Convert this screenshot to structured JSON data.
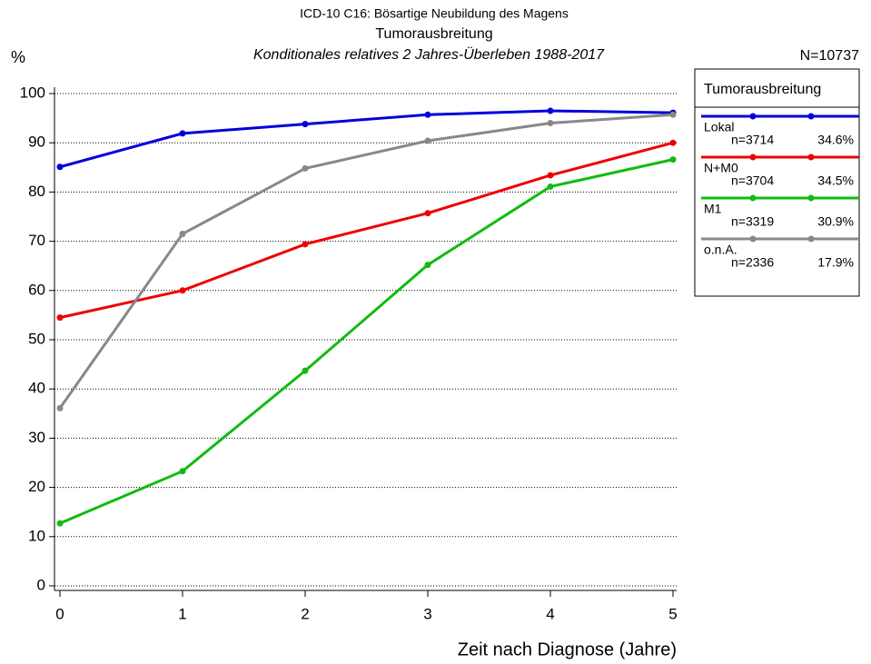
{
  "chart_data": {
    "type": "line",
    "suptitle": "ICD-10 C16: Bösartige Neubildung des Magens",
    "title": "Tumorausbreitung",
    "subtitle": "Konditionales relatives 2 Jahres-Überleben 1988-2017",
    "y_label": "%",
    "total_n": "N=10737",
    "x_label": "Zeit nach Diagnose (Jahre)",
    "legend_title": "Tumorausbreitung",
    "x": [
      0,
      1,
      2,
      3,
      4,
      5
    ],
    "xlim": [
      0,
      5
    ],
    "xticks": [
      0,
      1,
      2,
      3,
      4,
      5
    ],
    "ylim": [
      0,
      100
    ],
    "yticks": [
      0,
      10,
      20,
      30,
      40,
      50,
      60,
      70,
      80,
      90,
      100
    ],
    "grid": true,
    "series": [
      {
        "name": "Lokal",
        "n": "n=3714",
        "share": "34.6%",
        "color": "#0000dd",
        "values": [
          85.1,
          91.9,
          93.8,
          95.7,
          96.5,
          96.1
        ]
      },
      {
        "name": "N+M0",
        "n": "n=3704",
        "share": "34.5%",
        "color": "#ee0000",
        "values": [
          54.5,
          60.0,
          69.4,
          75.7,
          83.4,
          90.0
        ]
      },
      {
        "name": "M1",
        "n": "n=3319",
        "share": "30.9%",
        "color": "#11bb11",
        "values": [
          12.7,
          23.3,
          43.7,
          65.2,
          81.1,
          86.6
        ]
      },
      {
        "name": "o.n.A.",
        "n": "n=2336",
        "share": "17.9%",
        "color": "#888888",
        "values": [
          36.1,
          71.5,
          84.8,
          90.4,
          94.0,
          95.7
        ]
      }
    ]
  }
}
